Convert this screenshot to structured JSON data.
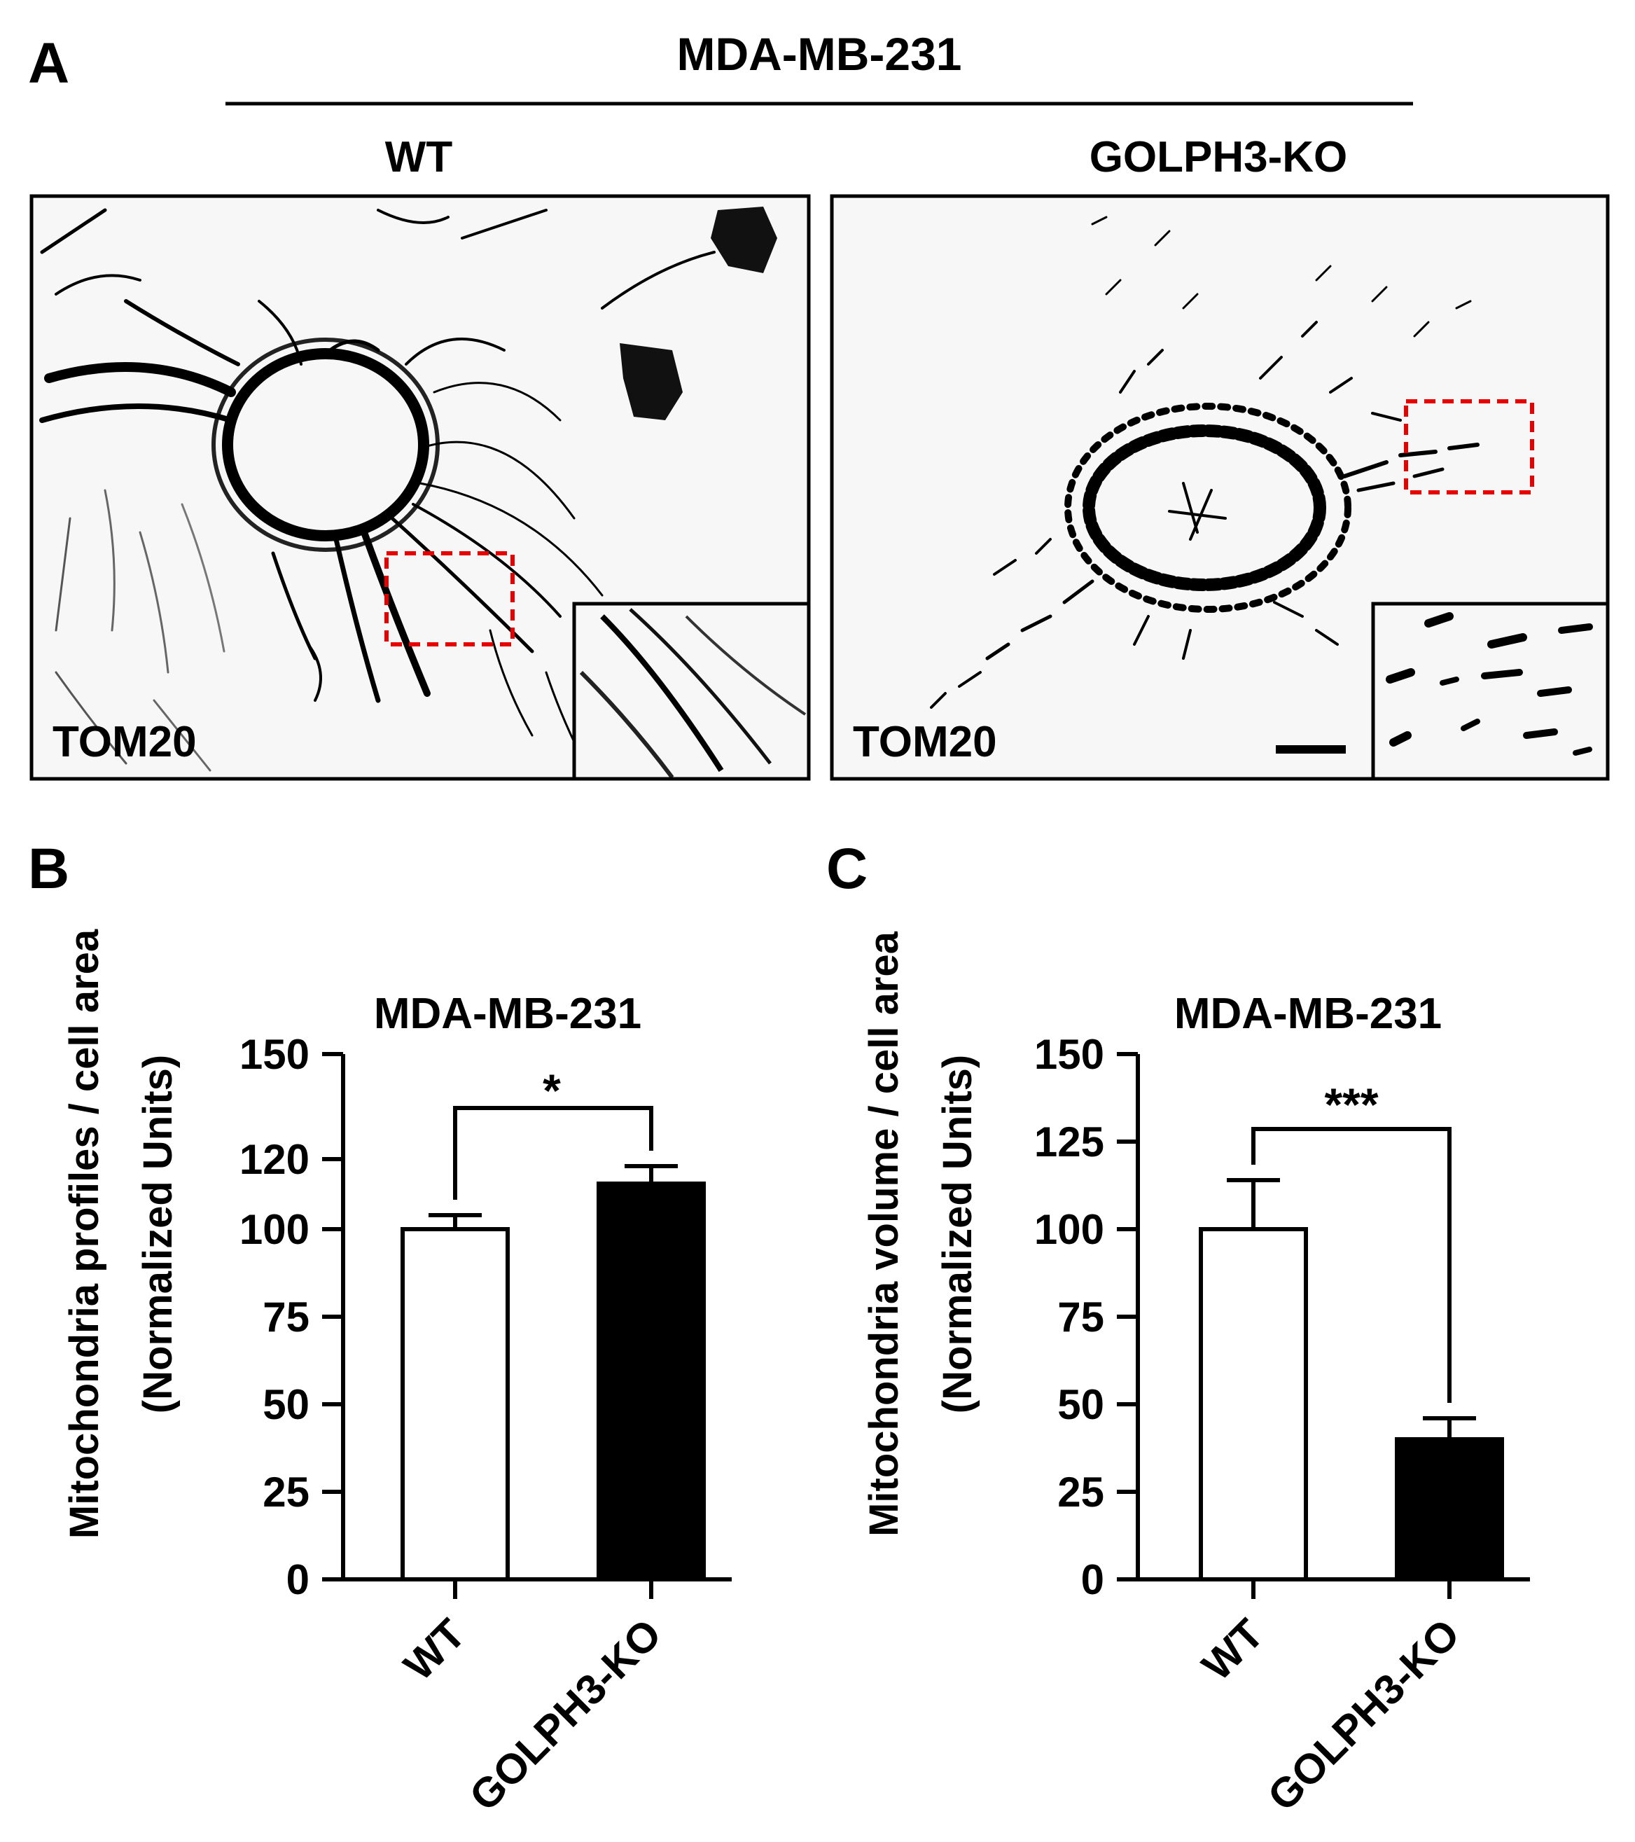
{
  "panel_a": {
    "letter": "A",
    "cell_line": "MDA-MB-231",
    "images": [
      {
        "condition": "WT",
        "stain": "TOM20"
      },
      {
        "condition": "GOLPH3-KO",
        "stain": "TOM20"
      }
    ]
  },
  "panel_b": {
    "letter": "B",
    "significance": "*"
  },
  "panel_c": {
    "letter": "C",
    "significance": "***"
  },
  "chart_data": [
    {
      "type": "bar",
      "title": "MDA-MB-231",
      "ylabel_line1": "Mitochondria profiles / cell area",
      "ylabel_line2": "(Normalized Units)",
      "xlabel": "",
      "categories": [
        "WT",
        "GOLPH3-KO"
      ],
      "values": [
        100,
        113
      ],
      "errors": [
        4,
        5
      ],
      "bar_colors": [
        "#ffffff",
        "#000000"
      ],
      "ylim": [
        0,
        150
      ],
      "yticks": [
        0,
        25,
        50,
        75,
        100,
        120,
        150
      ],
      "grid": false
    },
    {
      "type": "bar",
      "title": "MDA-MB-231",
      "ylabel_line1": "Mitochondria volume / cell area",
      "ylabel_line2": "(Normalized Units)",
      "xlabel": "",
      "categories": [
        "WT",
        "GOLPH3-KO"
      ],
      "values": [
        100,
        40
      ],
      "errors": [
        14,
        6
      ],
      "bar_colors": [
        "#ffffff",
        "#000000"
      ],
      "ylim": [
        0,
        150
      ],
      "yticks": [
        0,
        25,
        50,
        75,
        100,
        125,
        150
      ],
      "grid": false
    }
  ]
}
